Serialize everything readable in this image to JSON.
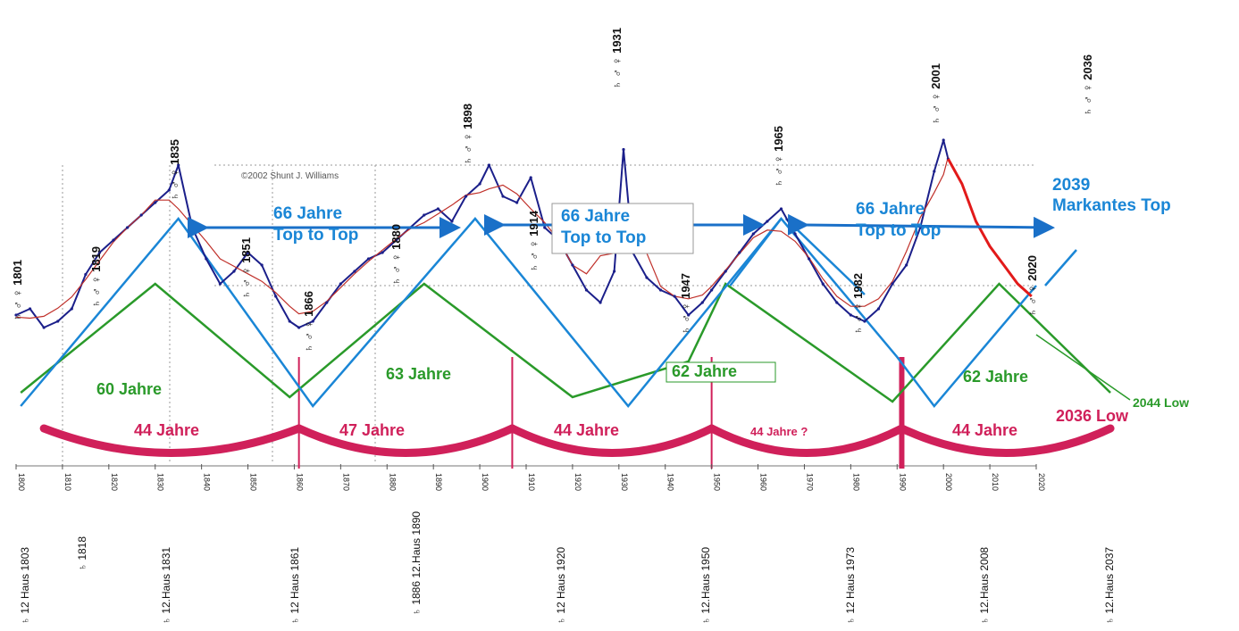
{
  "chart_data": {
    "type": "line",
    "title": "",
    "xlabel": "",
    "ylabel": "",
    "credit": "©2002 Shunt J. Williams",
    "colors": {
      "price": "#1b1f8a",
      "average": "#c0302a",
      "top_cycle": "#1a86d6",
      "green_cycle": "#2a9a2a",
      "low_cycle": "#d0205a",
      "forecast": "#e21a1a"
    },
    "x_ticks": [
      "1800",
      "1810",
      "1820",
      "1830",
      "1840",
      "1850",
      "1860",
      "1870",
      "1880",
      "1890",
      "1900",
      "1910",
      "1920",
      "1930",
      "1940",
      "1950",
      "1960",
      "1970",
      "1980",
      "1990",
      "2000",
      "2010",
      "2020"
    ],
    "x": [
      1800,
      1803,
      1806,
      1809,
      1812,
      1815,
      1818,
      1821,
      1824,
      1827,
      1830,
      1833,
      1835,
      1838,
      1841,
      1844,
      1847,
      1850,
      1853,
      1856,
      1859,
      1861,
      1864,
      1867,
      1870,
      1873,
      1876,
      1879,
      1882,
      1885,
      1888,
      1891,
      1894,
      1897,
      1900,
      1902,
      1905,
      1908,
      1911,
      1914,
      1917,
      1920,
      1923,
      1926,
      1929,
      1931,
      1933,
      1936,
      1939,
      1942,
      1945,
      1948,
      1950,
      1953,
      1956,
      1959,
      1962,
      1965,
      1968,
      1971,
      1974,
      1977,
      1980,
      1983,
      1986,
      1989,
      1992,
      1995,
      1998,
      2000,
      2001
    ],
    "series": [
      {
        "values": [
          42,
          44,
          38,
          40,
          44,
          55,
          62,
          66,
          70,
          74,
          78,
          82,
          90,
          70,
          60,
          52,
          56,
          62,
          58,
          48,
          40,
          38,
          40,
          46,
          52,
          56,
          60,
          62,
          66,
          70,
          74,
          76,
          72,
          80,
          84,
          90,
          80,
          78,
          86,
          70,
          66,
          58,
          50,
          46,
          56,
          95,
          62,
          54,
          50,
          48,
          42,
          46,
          50,
          56,
          62,
          68,
          72,
          76,
          68,
          60,
          52,
          46,
          42,
          40,
          44,
          52,
          58,
          70,
          88,
          98,
          92
        ]
      }
    ],
    "forecast": {
      "x": [
        2001,
        2004,
        2007,
        2010,
        2013,
        2016,
        2019
      ],
      "values": [
        92,
        84,
        72,
        64,
        58,
        52,
        48
      ]
    },
    "top_cycle_labels": [
      "66 Jahre Top to Top",
      "66 Jahre Top to Top",
      "66 Jahre Top to Top"
    ],
    "green_cycle_labels": [
      "60 Jahre",
      "63 Jahre",
      "62 Jahre",
      "62 Jahre"
    ],
    "low_cycle_labels": [
      "44 Jahre",
      "47 Jahre",
      "44 Jahre",
      "44 Jahre ?",
      "44 Jahre"
    ],
    "annotations": {
      "markantes_top": "2039 Markantes Top",
      "low_2036": "2036 Low",
      "low_2044": "2044 Low"
    },
    "aspect_years_top": [
      "1801",
      "1819",
      "1835",
      "1851",
      "1866",
      "1880",
      "1898",
      "1914",
      "1931",
      "1947",
      "1965",
      "1982",
      "2001",
      "2020",
      "2036"
    ],
    "bottom_labels": [
      "12 Haus 1803",
      "1818",
      "12.Haus 1831",
      "12 Haus 1861",
      "1886 12.Haus 1890",
      "12 Haus 1920",
      "12.Haus 1950",
      "12 Haus 1973",
      "12.Haus 2008",
      "12.Haus 2037"
    ],
    "ylim": [
      0,
      120
    ]
  }
}
